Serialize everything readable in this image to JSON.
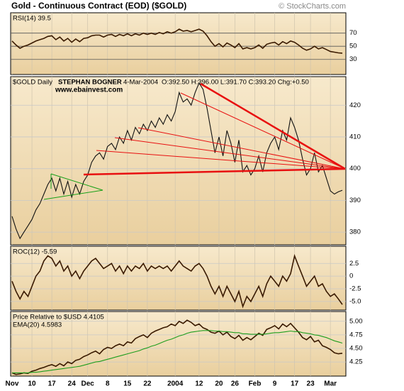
{
  "title": "Gold - Continuous Contract (EOD) ($GOLD)",
  "source": "© StockCharts.com",
  "chart_data": [
    {
      "type": "line",
      "ylim": [
        7,
        101
      ],
      "yticks": [
        30,
        50,
        70
      ],
      "grid_color": "#555555",
      "series": [
        {
          "name": "RSI(14) 39.5",
          "color": "#3a1a00",
          "values": [
            58,
            52,
            47,
            50,
            52,
            55,
            58,
            60,
            62,
            65,
            66,
            60,
            64,
            58,
            62,
            56,
            61,
            57,
            62,
            63,
            66,
            67,
            67,
            64,
            67,
            68,
            65,
            68,
            66,
            69,
            66,
            69,
            67,
            70,
            68,
            70,
            68,
            71,
            69,
            72,
            70,
            72,
            76,
            73,
            74,
            72,
            74,
            76,
            73,
            66,
            57,
            50,
            54,
            49,
            55,
            52,
            48,
            54,
            46,
            48,
            46,
            48,
            52,
            47,
            53,
            55,
            56,
            52,
            57,
            54,
            58,
            56,
            52,
            47,
            44,
            46,
            50,
            46,
            48,
            45,
            42,
            41,
            40,
            39.5
          ]
        }
      ]
    },
    {
      "type": "line",
      "title": "$GOLD Daily",
      "annotations": [
        "STEPHAN BOGNER",
        "4-Mar-2004",
        "O:392.50 H:396.00 L:391.70 C:393.20 Chg:+0.50",
        "www.ebainvest.com"
      ],
      "ylim": [
        376,
        429
      ],
      "yticks": [
        380,
        390,
        400,
        410,
        420
      ],
      "grid_color": "#c8c8c8",
      "series": [
        {
          "color": "#111111",
          "values": [
            385,
            381,
            378,
            380,
            382,
            384,
            387,
            389,
            392,
            395,
            397,
            393,
            397,
            392,
            396,
            391,
            395,
            392,
            396,
            398,
            402,
            404,
            405,
            403,
            407,
            408,
            406,
            410,
            408,
            412,
            409,
            413,
            411,
            414,
            412,
            415,
            413,
            416,
            414,
            417,
            415,
            418,
            424,
            421,
            422,
            420,
            424,
            427,
            425,
            419,
            412,
            405,
            410,
            404,
            412,
            408,
            402,
            409,
            399,
            401,
            398,
            400,
            404,
            399,
            405,
            408,
            410,
            406,
            412,
            409,
            416,
            413,
            409,
            403,
            398,
            400,
            405,
            399,
            401,
            397,
            393,
            392,
            392.7,
            393.2
          ]
        }
      ]
    },
    {
      "type": "line",
      "ylim": [
        -6.7,
        5.9
      ],
      "yticks": [
        2.5,
        0,
        -2.5,
        {
          "value": -5,
          "label": "-5.0"
        }
      ],
      "grid_color": "#c8c8c8",
      "series": [
        {
          "name": "ROC(12) -5.59",
          "color": "#3a1a00",
          "values": [
            -1,
            -3,
            -4.5,
            -3,
            -4,
            -2,
            0,
            1,
            3,
            4,
            3.5,
            2,
            3,
            1,
            2,
            0,
            1,
            -0.5,
            1,
            2,
            3,
            3.5,
            2.5,
            1.5,
            2,
            2.5,
            1,
            2,
            0.5,
            2,
            1,
            2,
            1.5,
            2.5,
            1,
            2,
            1.5,
            2,
            1.5,
            2,
            1,
            2,
            3,
            2,
            1.5,
            1,
            2,
            2.5,
            1.5,
            0,
            -2,
            -3.5,
            -2,
            -4,
            -2,
            -3.5,
            -5,
            -3,
            -6,
            -4,
            -5,
            -3.5,
            -2,
            -4,
            -1.5,
            0,
            -1,
            -2,
            0,
            -1,
            0.5,
            4,
            2,
            0,
            -2,
            -1,
            0,
            -2,
            -1.5,
            -3,
            -4,
            -3.5,
            -4.5,
            -5.59
          ]
        }
      ]
    },
    {
      "type": "line",
      "ylim": [
        3.99,
        5.18
      ],
      "yticks": [
        {
          "value": 5,
          "label": "5.00"
        },
        4.75,
        {
          "value": 4.5,
          "label": "4.50"
        },
        4.25
      ],
      "grid_color": "#c8c8c8",
      "categories": [
        "Nov",
        null,
        null,
        null,
        null,
        "10",
        null,
        null,
        null,
        null,
        "17",
        null,
        null,
        null,
        null,
        "24",
        null,
        null,
        null,
        "Dec",
        null,
        null,
        null,
        null,
        "8",
        null,
        null,
        null,
        null,
        "15",
        null,
        null,
        null,
        null,
        "22",
        null,
        null,
        null,
        null,
        null,
        null,
        "2004",
        null,
        null,
        null,
        null,
        null,
        "12",
        null,
        null,
        null,
        null,
        "20",
        null,
        null,
        null,
        "26",
        null,
        null,
        null,
        null,
        "Feb",
        null,
        null,
        null,
        null,
        "9",
        null,
        null,
        null,
        null,
        "17",
        null,
        null,
        null,
        "23",
        null,
        null,
        null,
        null,
        "Mar",
        null,
        null,
        null
      ],
      "series": [
        {
          "name": "Price Relative to $USD 4.4105",
          "color": "#3a1a00",
          "values": [
            4.05,
            4.02,
            4.03,
            4.05,
            4.04,
            4.08,
            4.1,
            4.13,
            4.15,
            4.18,
            4.2,
            4.17,
            4.22,
            4.18,
            4.25,
            4.22,
            4.28,
            4.3,
            4.35,
            4.38,
            4.42,
            4.45,
            4.4,
            4.48,
            4.52,
            4.5,
            4.55,
            4.58,
            4.55,
            4.62,
            4.6,
            4.68,
            4.72,
            4.75,
            4.7,
            4.78,
            4.82,
            4.85,
            4.88,
            4.9,
            4.95,
            4.92,
            5.0,
            4.96,
            5.02,
            4.98,
            4.92,
            4.95,
            4.88,
            4.85,
            4.8,
            4.78,
            4.82,
            4.75,
            4.8,
            4.72,
            4.68,
            4.74,
            4.65,
            4.7,
            4.66,
            4.72,
            4.78,
            4.74,
            4.85,
            4.88,
            4.92,
            4.86,
            4.95,
            4.9,
            4.96,
            4.88,
            4.8,
            4.7,
            4.66,
            4.72,
            4.62,
            4.65,
            4.55,
            4.52,
            4.48,
            4.42,
            4.4,
            4.4105
          ]
        },
        {
          "name": "EMA(20) 4.5983",
          "color": "#1e9e1e",
          "values": [
            4.05,
            4.05,
            4.05,
            4.05,
            4.05,
            4.06,
            4.06,
            4.07,
            4.08,
            4.09,
            4.1,
            4.11,
            4.12,
            4.13,
            4.14,
            4.15,
            4.16,
            4.17,
            4.19,
            4.21,
            4.23,
            4.25,
            4.26,
            4.28,
            4.3,
            4.32,
            4.34,
            4.36,
            4.38,
            4.4,
            4.42,
            4.44,
            4.46,
            4.49,
            4.51,
            4.54,
            4.56,
            4.59,
            4.62,
            4.65,
            4.67,
            4.7,
            4.73,
            4.75,
            4.78,
            4.8,
            4.81,
            4.82,
            4.83,
            4.83,
            4.83,
            4.82,
            4.82,
            4.81,
            4.81,
            4.8,
            4.79,
            4.79,
            4.77,
            4.77,
            4.76,
            4.76,
            4.76,
            4.76,
            4.77,
            4.78,
            4.79,
            4.79,
            4.8,
            4.81,
            4.82,
            4.81,
            4.81,
            4.79,
            4.78,
            4.77,
            4.75,
            4.74,
            4.72,
            4.7,
            4.67,
            4.64,
            4.62,
            4.5983
          ]
        }
      ]
    }
  ]
}
